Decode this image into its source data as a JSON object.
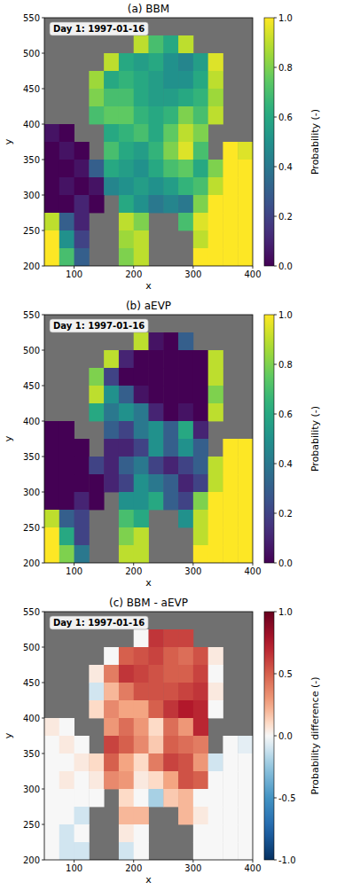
{
  "chart_data": [
    {
      "type": "heatmap",
      "title": "(a) BBM",
      "annotation": "Day 1: 1997-01-16",
      "x_label": "x",
      "y_label": "y",
      "color": "viridis",
      "xlim": [
        50,
        400
      ],
      "ylim": [
        200,
        550
      ],
      "xticks": [
        100,
        200,
        300,
        400
      ],
      "yticks": [
        200,
        250,
        300,
        350,
        400,
        450,
        500,
        550
      ],
      "x": [
        62.5,
        87.5,
        112.5,
        137.5,
        162.5,
        187.5,
        212.5,
        237.5,
        262.5,
        287.5,
        312.5,
        337.5,
        362.5,
        387.5
      ],
      "y": [
        537.5,
        512.5,
        487.5,
        462.5,
        437.5,
        412.5,
        387.5,
        362.5,
        337.5,
        312.5,
        287.5,
        262.5,
        237.5,
        212.5
      ],
      "cells": [
        [
          null,
          null,
          null,
          null,
          null,
          null,
          null,
          null,
          null,
          null,
          null,
          null,
          null,
          null
        ],
        [
          null,
          null,
          null,
          null,
          null,
          null,
          0.9,
          0.7,
          0.6,
          0.9,
          null,
          null,
          null,
          null
        ],
        [
          null,
          null,
          null,
          null,
          0.9,
          0.6,
          0.55,
          0.6,
          0.5,
          0.45,
          0.55,
          0.95,
          null,
          null
        ],
        [
          null,
          null,
          null,
          0.85,
          0.6,
          0.65,
          0.6,
          0.55,
          0.5,
          0.5,
          0.6,
          0.9,
          null,
          null
        ],
        [
          null,
          null,
          null,
          0.8,
          0.7,
          0.7,
          0.6,
          0.55,
          0.55,
          0.6,
          0.65,
          0.85,
          null,
          null
        ],
        [
          null,
          null,
          null,
          0.7,
          0.75,
          0.75,
          0.65,
          0.6,
          0.65,
          0.8,
          0.7,
          0.9,
          null,
          null
        ],
        [
          0.05,
          0.0,
          null,
          null,
          0.6,
          0.65,
          0.7,
          0.6,
          0.75,
          0.9,
          0.8,
          null,
          null,
          null
        ],
        [
          0.0,
          0.05,
          0.0,
          null,
          0.7,
          0.6,
          0.55,
          0.65,
          0.8,
          0.95,
          0.7,
          null,
          1.0,
          0.95
        ],
        [
          0.0,
          0.0,
          0.05,
          0.3,
          0.6,
          0.55,
          0.5,
          0.6,
          0.7,
          0.75,
          0.6,
          0.8,
          1.0,
          1.0
        ],
        [
          0.0,
          0.05,
          0.0,
          0.05,
          0.45,
          0.5,
          0.55,
          0.5,
          0.55,
          0.65,
          0.7,
          0.9,
          1.0,
          1.0
        ],
        [
          0.0,
          0.0,
          0.1,
          0.0,
          null,
          0.6,
          0.5,
          0.4,
          0.45,
          0.4,
          0.8,
          1.0,
          1.0,
          1.0
        ],
        [
          0.9,
          0.3,
          0.1,
          null,
          null,
          0.9,
          0.8,
          null,
          null,
          0.7,
          0.95,
          1.0,
          1.0,
          1.0
        ],
        [
          1.0,
          0.5,
          0.2,
          null,
          null,
          0.85,
          0.9,
          null,
          null,
          null,
          0.9,
          1.0,
          1.0,
          1.0
        ],
        [
          1.0,
          0.7,
          0.3,
          null,
          null,
          0.8,
          0.9,
          null,
          null,
          null,
          1.0,
          1.0,
          1.0,
          1.0
        ]
      ],
      "colorbar": {
        "label": "Probability (-)",
        "lim": [
          0,
          1
        ],
        "ticks": [
          {
            "value": 0,
            "label": "0.0"
          },
          0.2,
          0.4,
          0.6,
          0.8,
          {
            "value": 1,
            "label": "1.0"
          }
        ]
      }
    },
    {
      "type": "heatmap",
      "title": "(b) aEVP",
      "annotation": "Day 1: 1997-01-16",
      "x_label": "x",
      "y_label": "y",
      "color": "viridis",
      "xlim": [
        50,
        400
      ],
      "ylim": [
        200,
        550
      ],
      "xticks": [
        100,
        200,
        300,
        400
      ],
      "yticks": [
        200,
        250,
        300,
        350,
        400,
        450,
        500,
        550
      ],
      "x": [
        62.5,
        87.5,
        112.5,
        137.5,
        162.5,
        187.5,
        212.5,
        237.5,
        262.5,
        287.5,
        312.5,
        337.5,
        362.5,
        387.5
      ],
      "y": [
        537.5,
        512.5,
        487.5,
        462.5,
        437.5,
        412.5,
        387.5,
        362.5,
        337.5,
        312.5,
        287.5,
        262.5,
        237.5,
        212.5
      ],
      "cells": [
        [
          null,
          null,
          null,
          null,
          null,
          null,
          null,
          null,
          null,
          null,
          null,
          null,
          null,
          null
        ],
        [
          null,
          null,
          null,
          null,
          null,
          null,
          0.9,
          0.05,
          0.0,
          0.3,
          null,
          null,
          null,
          null
        ],
        [
          null,
          null,
          null,
          null,
          0.9,
          0.1,
          0.0,
          0.0,
          0.0,
          0.0,
          0.0,
          0.9,
          null,
          null
        ],
        [
          null,
          null,
          null,
          0.8,
          0.2,
          0.0,
          0.0,
          0.0,
          0.0,
          0.0,
          0.0,
          0.9,
          null,
          null
        ],
        [
          null,
          null,
          null,
          0.9,
          0.5,
          0.3,
          0.05,
          0.0,
          0.0,
          0.0,
          0.0,
          0.8,
          null,
          null
        ],
        [
          null,
          null,
          null,
          0.6,
          0.4,
          0.5,
          0.4,
          0.1,
          0.0,
          0.05,
          0.0,
          0.9,
          null,
          null
        ],
        [
          0.0,
          0.0,
          null,
          null,
          0.3,
          0.2,
          0.4,
          0.5,
          0.3,
          0.6,
          0.1,
          null,
          null,
          null
        ],
        [
          0.0,
          0.0,
          0.0,
          null,
          0.1,
          0.1,
          0.2,
          0.5,
          0.3,
          0.5,
          0.3,
          null,
          1.0,
          1.0
        ],
        [
          0.0,
          0.0,
          0.0,
          0.2,
          0.1,
          0.3,
          0.4,
          0.2,
          0.1,
          0.2,
          0.3,
          0.9,
          1.0,
          1.0
        ],
        [
          0.0,
          0.0,
          0.0,
          0.0,
          0.1,
          0.2,
          0.5,
          0.4,
          0.3,
          0.1,
          0.2,
          0.9,
          1.0,
          1.0
        ],
        [
          0.0,
          0.0,
          0.1,
          0.0,
          null,
          0.5,
          0.5,
          0.6,
          0.3,
          0.2,
          0.8,
          1.0,
          1.0,
          1.0
        ],
        [
          0.9,
          0.3,
          0.2,
          null,
          null,
          0.7,
          0.6,
          null,
          null,
          0.5,
          0.9,
          1.0,
          1.0,
          1.0
        ],
        [
          1.0,
          0.6,
          0.2,
          null,
          null,
          0.8,
          0.9,
          null,
          null,
          null,
          0.9,
          1.0,
          1.0,
          1.0
        ],
        [
          1.0,
          0.8,
          0.4,
          null,
          null,
          0.9,
          0.9,
          null,
          null,
          null,
          1.0,
          1.0,
          1.0,
          1.0
        ]
      ],
      "colorbar": {
        "label": "Probability (-)",
        "lim": [
          0,
          1
        ],
        "ticks": [
          {
            "value": 0,
            "label": "0.0"
          },
          0.2,
          0.4,
          0.6,
          0.8,
          {
            "value": 1,
            "label": "1.0"
          }
        ]
      }
    },
    {
      "type": "heatmap",
      "title": "(c) BBM - aEVP",
      "annotation": "Day 1: 1997-01-16",
      "x_label": "x",
      "y_label": "y",
      "color": "RdBu_r",
      "xlim": [
        50,
        400
      ],
      "ylim": [
        200,
        550
      ],
      "xticks": [
        100,
        200,
        300,
        400
      ],
      "yticks": [
        200,
        250,
        300,
        350,
        400,
        450,
        500,
        550
      ],
      "x": [
        62.5,
        87.5,
        112.5,
        137.5,
        162.5,
        187.5,
        212.5,
        237.5,
        262.5,
        287.5,
        312.5,
        337.5,
        362.5,
        387.5
      ],
      "y": [
        537.5,
        512.5,
        487.5,
        462.5,
        437.5,
        412.5,
        387.5,
        362.5,
        337.5,
        312.5,
        287.5,
        262.5,
        237.5,
        212.5
      ],
      "cells": [
        [
          null,
          null,
          null,
          null,
          null,
          null,
          null,
          null,
          null,
          null,
          null,
          null,
          null,
          null
        ],
        [
          null,
          null,
          null,
          null,
          null,
          null,
          0.0,
          0.65,
          0.6,
          0.6,
          null,
          null,
          null,
          null
        ],
        [
          null,
          null,
          null,
          null,
          0.0,
          0.5,
          0.55,
          0.6,
          0.5,
          0.45,
          0.55,
          0.05,
          null,
          null
        ],
        [
          null,
          null,
          null,
          0.05,
          0.4,
          0.65,
          0.6,
          0.55,
          0.5,
          0.5,
          0.6,
          0.0,
          null,
          null
        ],
        [
          null,
          null,
          null,
          -0.1,
          0.2,
          0.4,
          0.55,
          0.55,
          0.55,
          0.6,
          0.65,
          0.05,
          null,
          null
        ],
        [
          null,
          null,
          null,
          0.1,
          0.35,
          0.25,
          0.25,
          0.5,
          0.65,
          0.75,
          0.7,
          0.0,
          null,
          null
        ],
        [
          0.05,
          0.0,
          null,
          null,
          0.3,
          0.45,
          0.3,
          0.1,
          0.45,
          0.3,
          0.7,
          null,
          null,
          null
        ],
        [
          0.0,
          0.05,
          0.0,
          null,
          0.6,
          0.5,
          0.35,
          0.15,
          0.5,
          0.45,
          0.4,
          null,
          0.0,
          -0.05
        ],
        [
          0.0,
          0.0,
          0.05,
          0.1,
          0.5,
          0.25,
          0.1,
          0.4,
          0.6,
          0.55,
          0.3,
          -0.1,
          0.0,
          0.0
        ],
        [
          0.0,
          0.05,
          0.0,
          0.05,
          0.35,
          0.3,
          0.05,
          0.1,
          0.25,
          0.55,
          0.5,
          0.0,
          0.0,
          0.0
        ],
        [
          0.0,
          0.0,
          0.0,
          0.0,
          null,
          0.1,
          0.0,
          -0.2,
          0.15,
          0.2,
          0.0,
          0.0,
          0.0,
          0.0
        ],
        [
          0.0,
          0.0,
          -0.1,
          null,
          null,
          0.2,
          0.2,
          null,
          null,
          0.2,
          0.05,
          0.0,
          0.0,
          0.0
        ],
        [
          0.0,
          -0.1,
          0.0,
          null,
          null,
          0.05,
          0.0,
          null,
          null,
          null,
          0.0,
          0.0,
          0.0,
          0.0
        ],
        [
          0.0,
          -0.1,
          -0.1,
          null,
          null,
          -0.1,
          0.0,
          null,
          null,
          null,
          0.0,
          0.0,
          0.0,
          0.0
        ]
      ],
      "colorbar": {
        "label": "Probability difference (-)",
        "lim": [
          -1,
          1
        ],
        "ticks": [
          {
            "value": -1,
            "label": "-1.0"
          },
          -0.5,
          {
            "value": 0,
            "label": "0.0"
          },
          0.5,
          {
            "value": 1,
            "label": "1.0"
          }
        ]
      }
    }
  ]
}
